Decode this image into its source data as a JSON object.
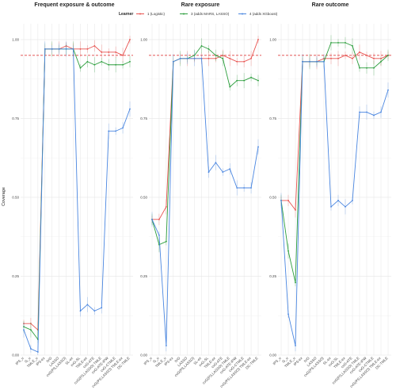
{
  "chart_data": [
    {
      "type": "line",
      "title": "Frequent exposure & outcome",
      "ylabel": "Coverage",
      "xlabel": "",
      "ylim": [
        0,
        1.05
      ],
      "yticks": [
        0.0,
        0.25,
        0.5,
        0.75,
        1.0
      ],
      "categories": [
        "IPS_u",
        "G_u",
        "TMLE_u",
        "IPS-ex",
        "IVG",
        "LASSO",
        "cvG(PS,LASSO)",
        "SL-ex",
        "cvG-SL",
        "TMLE-ex",
        "cvG-ATE",
        "cvG(PS,LASSO) TMLE",
        "cvG-ATE-IPW",
        "cvG-CTMLE",
        "cvG(PS,LASSO) TMLE-ex",
        "DC-TMLE"
      ],
      "series": [
        {
          "name": "1 (Logistic)",
          "values": [
            0.1,
            0.1,
            0.08,
            0.97,
            0.97,
            0.97,
            0.98,
            0.97,
            0.97,
            0.97,
            0.98,
            0.96,
            0.96,
            0.96,
            0.95,
            1.0
          ]
        },
        {
          "name": "3 (adds MARS, LASSO)",
          "values": [
            0.09,
            0.08,
            0.05,
            0.97,
            0.97,
            0.97,
            0.97,
            0.97,
            0.91,
            0.93,
            0.92,
            0.93,
            0.92,
            0.92,
            0.92,
            0.93
          ]
        },
        {
          "name": "4 (adds XGboost)",
          "values": [
            0.08,
            0.02,
            0.01,
            0.97,
            0.97,
            0.97,
            0.97,
            0.97,
            0.14,
            0.16,
            0.14,
            0.15,
            0.71,
            0.71,
            0.72,
            0.78
          ]
        }
      ],
      "reference_line": 0.95
    },
    {
      "type": "line",
      "title": "Rare exposure",
      "ylabel": "",
      "xlabel": "",
      "ylim": [
        0,
        1.05
      ],
      "yticks": [
        0.0,
        0.25,
        0.5,
        0.75,
        1.0
      ],
      "categories": [
        "IPS_u",
        "G_u",
        "TMLE_u",
        "IPS-ex",
        "IVG",
        "LASSO",
        "cvG(PS,LASSO)",
        "SL-ex",
        "cvG-SL",
        "TMLE-ex",
        "cvG-ATE",
        "cvG(PS,LASSO) TMLE",
        "cvG-ATE-IPW",
        "cvG-CTMLE",
        "cvG(PS,LASSO) TMLE-ex",
        "DC-TMLE"
      ],
      "series": [
        {
          "name": "1 (Logistic)",
          "values": [
            0.43,
            0.43,
            0.47,
            0.93,
            0.94,
            0.94,
            0.94,
            0.94,
            0.94,
            0.94,
            0.95,
            0.94,
            0.93,
            0.93,
            0.94,
            1.0
          ]
        },
        {
          "name": "3 (adds MARS, LASSO)",
          "values": [
            0.43,
            0.35,
            0.36,
            0.93,
            0.94,
            0.94,
            0.95,
            0.98,
            0.97,
            0.95,
            0.94,
            0.85,
            0.87,
            0.87,
            0.88,
            0.87
          ]
        },
        {
          "name": "4 (adds XGboost)",
          "values": [
            0.43,
            0.38,
            0.03,
            0.93,
            0.94,
            0.94,
            0.94,
            0.94,
            0.58,
            0.61,
            0.58,
            0.59,
            0.53,
            0.53,
            0.53,
            0.66
          ]
        }
      ],
      "reference_line": 0.95
    },
    {
      "type": "line",
      "title": "Rare outcome",
      "ylabel": "",
      "xlabel": "",
      "ylim": [
        0,
        1.05
      ],
      "yticks": [
        0.0,
        0.25,
        0.5,
        0.75,
        1.0
      ],
      "categories": [
        "IPS_u",
        "G_u",
        "TMLE_u",
        "IPS-ex",
        "IVG",
        "LASSO",
        "cvG(PS,LASSO)",
        "SL-ex",
        "cvG-SL",
        "TMLE-ex",
        "cvG-ATE",
        "cvG(PS,LASSO) TMLE",
        "cvG-ATE-IPW",
        "cvG-CTMLE",
        "cvG(PS,LASSO) TMLE-ex",
        "DC-TMLE"
      ],
      "series": [
        {
          "name": "1 (Logistic)",
          "values": [
            0.49,
            0.49,
            0.46,
            0.93,
            0.93,
            0.93,
            0.94,
            0.94,
            0.94,
            0.95,
            0.94,
            0.96,
            0.95,
            0.94,
            0.94,
            0.95
          ]
        },
        {
          "name": "3 (adds MARS, LASSO)",
          "values": [
            0.49,
            0.33,
            0.23,
            0.93,
            0.93,
            0.93,
            0.93,
            0.99,
            0.99,
            0.99,
            0.98,
            0.91,
            0.91,
            0.91,
            0.93,
            0.95
          ]
        },
        {
          "name": "4 (adds XGboost)",
          "values": [
            0.49,
            0.13,
            0.03,
            0.93,
            0.93,
            0.93,
            0.93,
            0.47,
            0.49,
            0.47,
            0.49,
            0.77,
            0.77,
            0.76,
            0.77,
            0.84
          ]
        }
      ],
      "reference_line": 0.95
    }
  ],
  "legend": {
    "title": "Learner",
    "items": [
      {
        "label": "1 (Logistic)",
        "color": "#e8524f"
      },
      {
        "label": "3 (adds MARS, LASSO)",
        "color": "#2a9d3b"
      },
      {
        "label": "4 (adds XGboost)",
        "color": "#4a86e0"
      }
    ],
    "placement": "top"
  },
  "colors": {
    "s1": "#e8524f",
    "s3": "#2a9d3b",
    "s4": "#4a86e0",
    "ref": "#e04040",
    "grid": "#e6e6e6"
  }
}
